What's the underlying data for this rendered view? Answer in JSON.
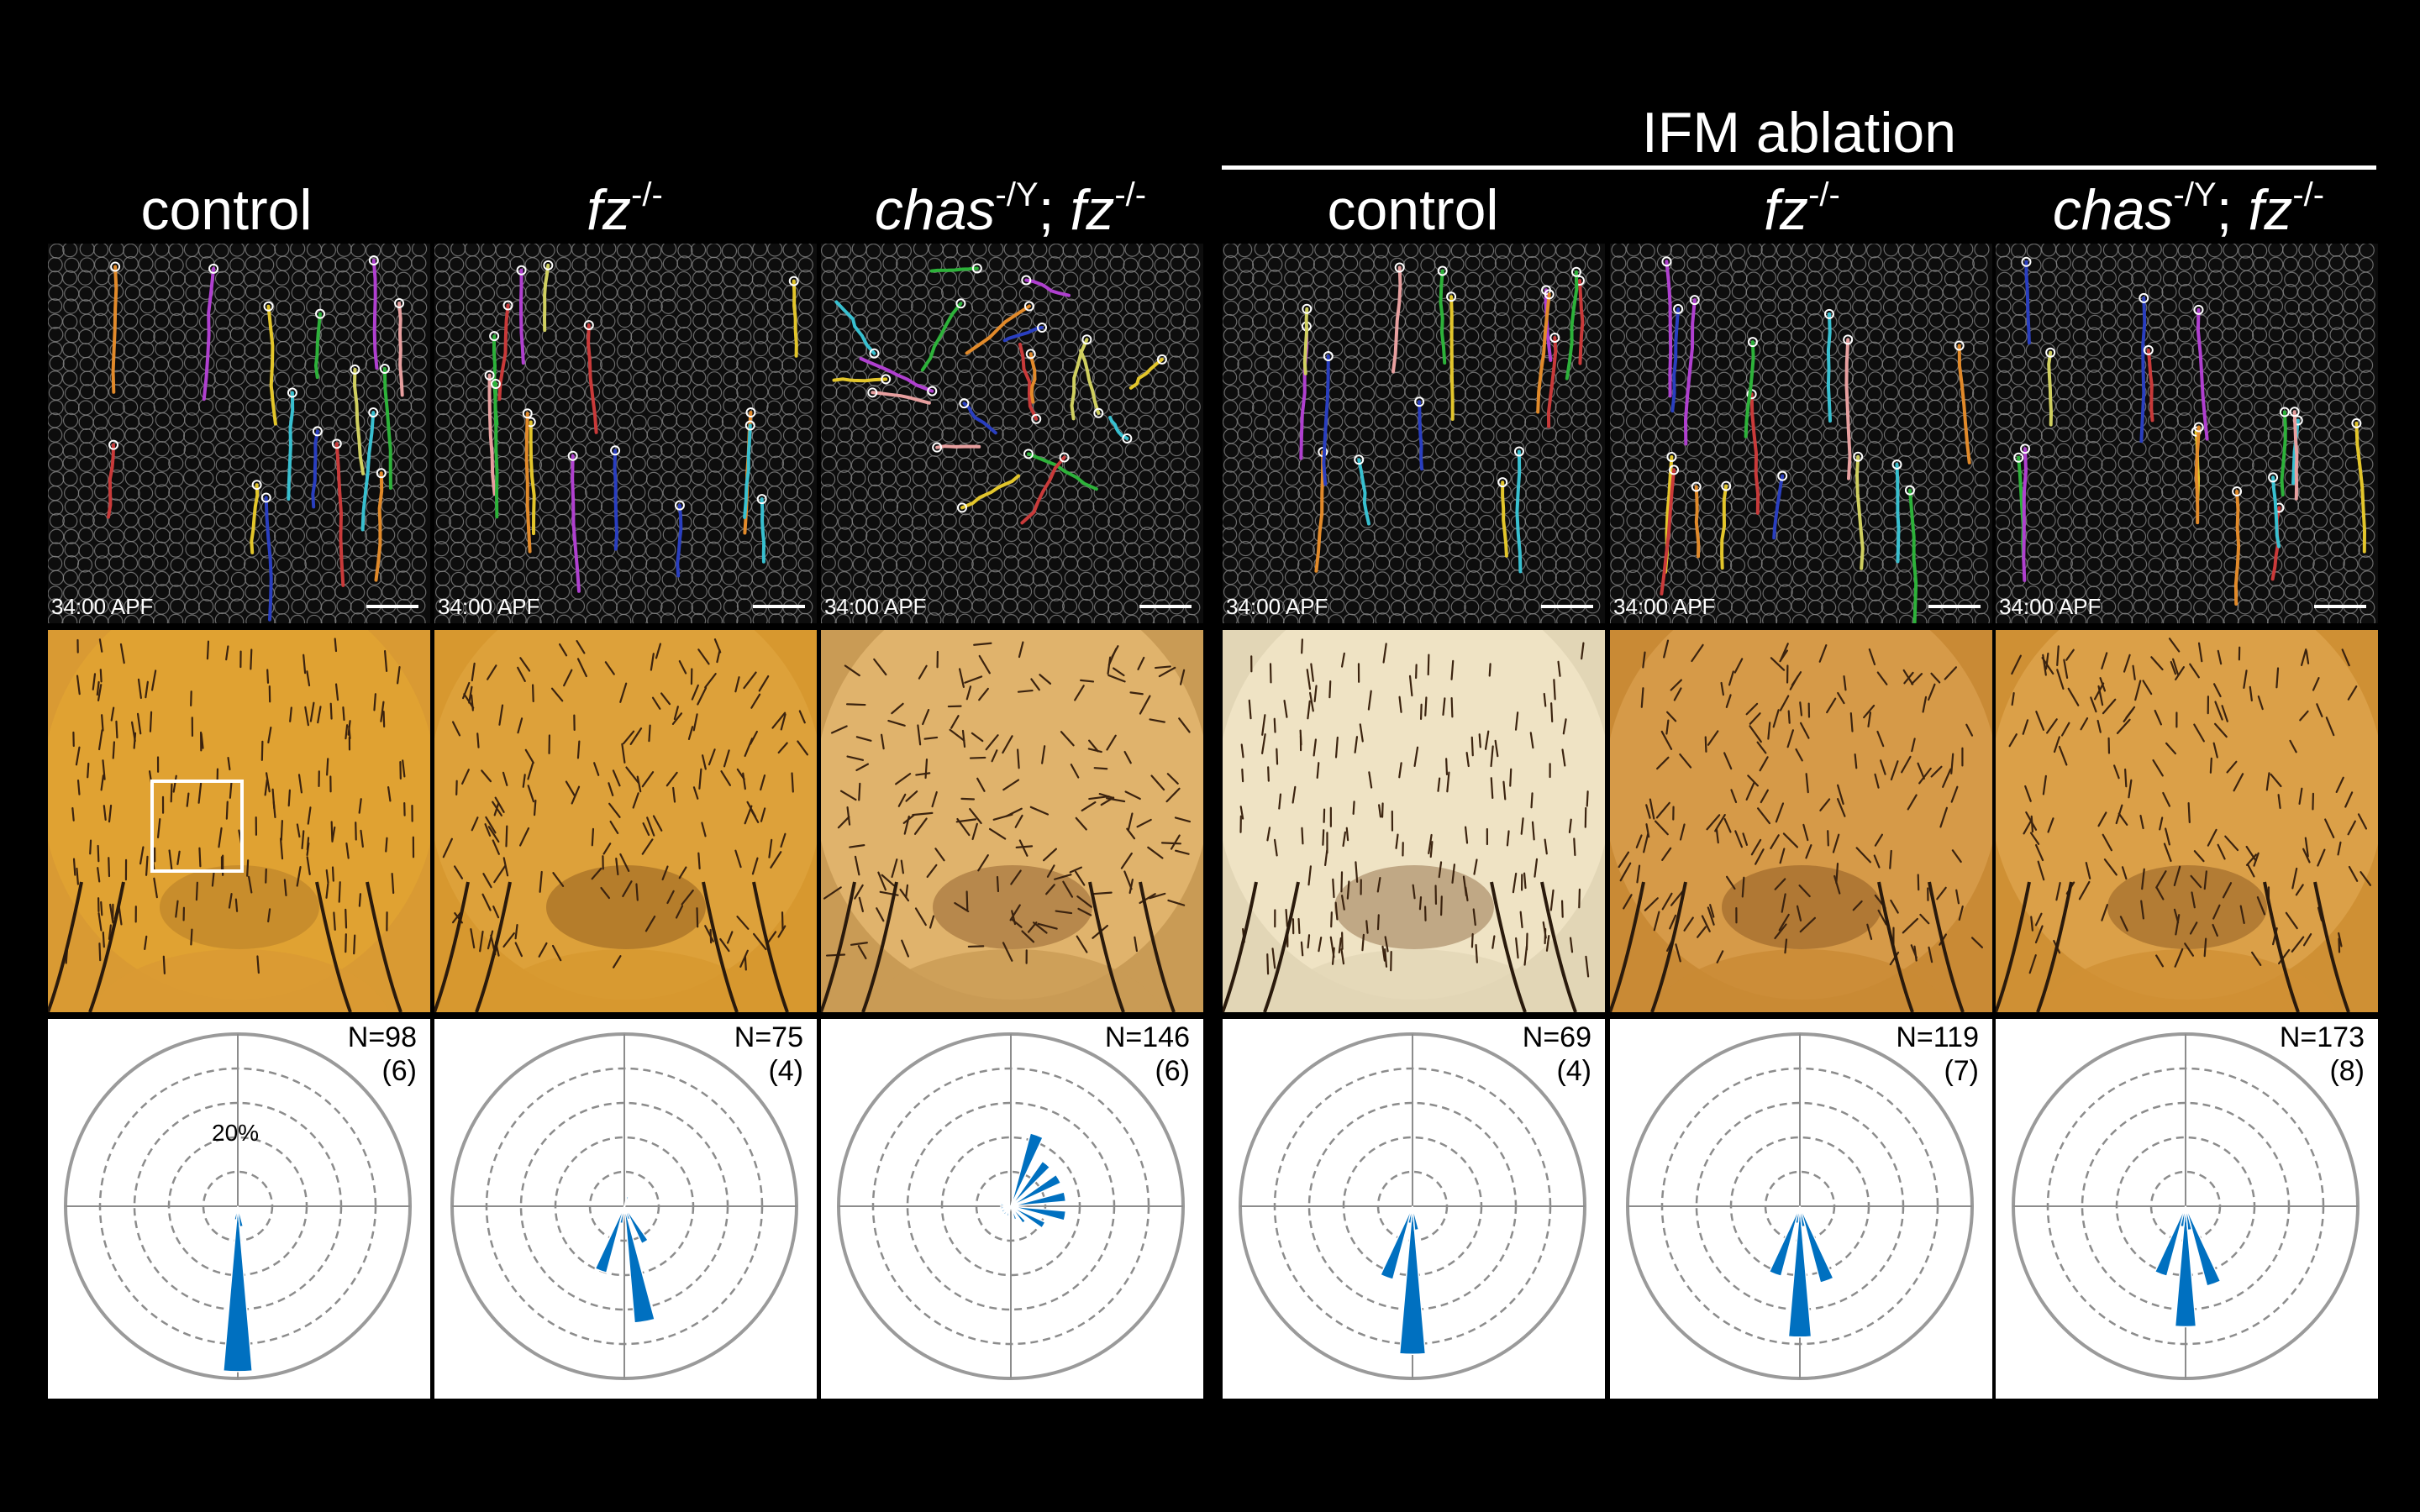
{
  "header": {
    "group_title": "IFM ablation"
  },
  "colors": {
    "rose_fill": "#0070c0",
    "background": "#000000",
    "panel_background": "#ffffff"
  },
  "timestamp": "34:00 APF",
  "percent_label": "20%",
  "columns": [
    {
      "id": "control",
      "title_main": "control",
      "title_sup": "",
      "title_mid": "",
      "title_tail": "",
      "title_tail_sup": "",
      "n_label": "N=98",
      "flies_label": "(6)",
      "ifm_ablation": false
    },
    {
      "id": "fz",
      "title_main": "fz",
      "title_sup": "-/-",
      "title_mid": "",
      "title_tail": "",
      "title_tail_sup": "",
      "n_label": "N=75",
      "flies_label": "(4)",
      "ifm_ablation": false
    },
    {
      "id": "chas-fz",
      "title_main": "chas",
      "title_sup": "-/Y",
      "title_mid": "; ",
      "title_tail": "fz",
      "title_tail_sup": "-/-",
      "n_label": "N=146",
      "flies_label": "(6)",
      "ifm_ablation": false
    },
    {
      "id": "ifm-control",
      "title_main": "control",
      "title_sup": "",
      "title_mid": "",
      "title_tail": "",
      "title_tail_sup": "",
      "n_label": "N=69",
      "flies_label": "(4)",
      "ifm_ablation": true
    },
    {
      "id": "ifm-fz",
      "title_main": "fz",
      "title_sup": "-/-",
      "title_mid": "",
      "title_tail": "",
      "title_tail_sup": "",
      "n_label": "N=119",
      "flies_label": "(7)",
      "ifm_ablation": true
    },
    {
      "id": "ifm-chas-fz",
      "title_main": "chas",
      "title_sup": "-/Y",
      "title_mid": "; ",
      "title_tail": "fz",
      "title_tail_sup": "-/-",
      "n_label": "N=173",
      "flies_label": "(8)",
      "ifm_ablation": true
    }
  ],
  "chart_data": [
    {
      "type": "rose",
      "panel": "control",
      "n": 98,
      "flies": 6,
      "rmax_percent": 50,
      "rings_percent": [
        10,
        20,
        30,
        40
      ],
      "bin_width_deg": 10,
      "bins": [
        {
          "angle_deg": 180,
          "percent": 48
        },
        {
          "angle_deg": 170,
          "percent": 6
        },
        {
          "angle_deg": 190,
          "percent": 4
        }
      ]
    },
    {
      "type": "rose",
      "panel": "fz",
      "n": 75,
      "flies": 4,
      "rmax_percent": 50,
      "rings_percent": [
        10,
        20,
        30,
        40
      ],
      "bin_width_deg": 10,
      "bins": [
        {
          "angle_deg": 170,
          "percent": 34
        },
        {
          "angle_deg": 200,
          "percent": 20
        },
        {
          "angle_deg": 150,
          "percent": 12
        },
        {
          "angle_deg": 190,
          "percent": 5
        },
        {
          "angle_deg": 160,
          "percent": 4
        },
        {
          "angle_deg": 20,
          "percent": 3
        },
        {
          "angle_deg": 40,
          "percent": 2
        }
      ]
    },
    {
      "type": "rose",
      "panel": "chas-fz",
      "n": 146,
      "flies": 6,
      "rmax_percent": 50,
      "rings_percent": [
        10,
        20,
        30,
        40
      ],
      "bin_width_deg": 10,
      "bins": [
        {
          "angle_deg": 20,
          "percent": 22
        },
        {
          "angle_deg": 40,
          "percent": 16
        },
        {
          "angle_deg": 60,
          "percent": 16
        },
        {
          "angle_deg": 80,
          "percent": 16
        },
        {
          "angle_deg": 100,
          "percent": 16
        },
        {
          "angle_deg": 120,
          "percent": 11
        },
        {
          "angle_deg": 140,
          "percent": 6
        },
        {
          "angle_deg": 160,
          "percent": 4
        },
        {
          "angle_deg": 200,
          "percent": 3
        },
        {
          "angle_deg": 220,
          "percent": 3
        },
        {
          "angle_deg": 240,
          "percent": 3
        },
        {
          "angle_deg": 260,
          "percent": 3
        },
        {
          "angle_deg": 280,
          "percent": 3
        }
      ]
    },
    {
      "type": "rose",
      "panel": "IFM ablation control",
      "n": 69,
      "flies": 4,
      "rmax_percent": 50,
      "rings_percent": [
        10,
        20,
        30,
        40
      ],
      "bin_width_deg": 10,
      "bins": [
        {
          "angle_deg": 180,
          "percent": 43
        },
        {
          "angle_deg": 200,
          "percent": 22
        },
        {
          "angle_deg": 170,
          "percent": 7
        },
        {
          "angle_deg": 190,
          "percent": 5
        }
      ]
    },
    {
      "type": "rose",
      "panel": "IFM ablation fz",
      "n": 119,
      "flies": 7,
      "rmax_percent": 50,
      "rings_percent": [
        10,
        20,
        30,
        40
      ],
      "bin_width_deg": 10,
      "bins": [
        {
          "angle_deg": 180,
          "percent": 38
        },
        {
          "angle_deg": 160,
          "percent": 23
        },
        {
          "angle_deg": 200,
          "percent": 21
        },
        {
          "angle_deg": 170,
          "percent": 6
        },
        {
          "angle_deg": 190,
          "percent": 5
        }
      ]
    },
    {
      "type": "rose",
      "panel": "IFM ablation chas-fz",
      "n": 173,
      "flies": 8,
      "rmax_percent": 50,
      "rings_percent": [
        10,
        20,
        30,
        40
      ],
      "bin_width_deg": 10,
      "bins": [
        {
          "angle_deg": 180,
          "percent": 35
        },
        {
          "angle_deg": 160,
          "percent": 24
        },
        {
          "angle_deg": 200,
          "percent": 21
        },
        {
          "angle_deg": 170,
          "percent": 7
        },
        {
          "angle_deg": 190,
          "percent": 6
        }
      ]
    }
  ]
}
